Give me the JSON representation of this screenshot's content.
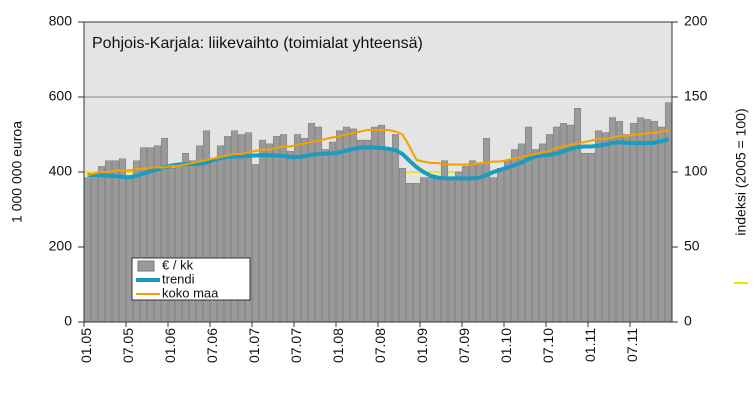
{
  "chart_data": {
    "type": "bar",
    "title": "Pohjois-Karjala: liikevaihto (toimialat yhteensä)",
    "ylabel": "1 000 000 euroa",
    "categories": [
      "01.05",
      null,
      null,
      null,
      null,
      null,
      "07.05",
      null,
      null,
      null,
      null,
      null,
      "01.06",
      null,
      null,
      null,
      null,
      null,
      "07.06",
      null,
      null,
      null,
      null,
      null,
      "01.07",
      null,
      null,
      null,
      null,
      null,
      "07.07",
      null,
      null,
      null,
      null,
      null,
      "01.08",
      null,
      null,
      null,
      null,
      null,
      "07.08",
      null,
      null,
      null,
      null,
      null,
      "01.09",
      null,
      null,
      null,
      null,
      null,
      "07.09",
      null,
      null,
      null,
      null,
      null,
      "01.10",
      null,
      null,
      null,
      null,
      null,
      "07.10",
      null,
      null,
      null,
      null,
      null,
      "01.11",
      null,
      null,
      null,
      null,
      null,
      "07.11",
      null,
      null,
      null,
      null,
      null
    ],
    "series": [
      {
        "name": "€ / kk",
        "type": "bar",
        "color": "#9a9a9a",
        "values": [
          385,
          395,
          415,
          430,
          430,
          435,
          390,
          430,
          465,
          465,
          470,
          490,
          410,
          420,
          450,
          430,
          470,
          510,
          430,
          470,
          495,
          510,
          500,
          505,
          420,
          485,
          475,
          495,
          500,
          455,
          500,
          490,
          530,
          520,
          460,
          480,
          510,
          520,
          515,
          485,
          485,
          520,
          525,
          460,
          500,
          410,
          370,
          370,
          385,
          385,
          380,
          430,
          385,
          400,
          415,
          430,
          420,
          490,
          385,
          410,
          430,
          460,
          475,
          520,
          460,
          475,
          500,
          520,
          530,
          525,
          570,
          450,
          450,
          510,
          505,
          545,
          535,
          500,
          530,
          545,
          540,
          535,
          520,
          585
        ]
      },
      {
        "name": "trendi",
        "type": "line",
        "color": "#1a9bbf",
        "values": [
          392,
          392,
          391,
          390,
          389,
          387,
          386,
          390,
          396,
          402,
          407,
          412,
          417,
          420,
          421,
          421,
          422,
          425,
          432,
          437,
          440,
          441,
          442,
          443,
          444,
          445,
          445,
          444,
          443,
          440,
          440,
          442,
          446,
          448,
          449,
          450,
          452,
          457,
          462,
          465,
          466,
          465,
          464,
          462,
          458,
          448,
          430,
          413,
          400,
          390,
          385,
          383,
          383,
          383,
          383,
          383,
          385,
          392,
          400,
          406,
          412,
          418,
          425,
          435,
          442,
          444,
          446,
          449,
          455,
          462,
          466,
          468,
          468,
          470,
          474,
          478,
          479,
          478,
          477,
          477,
          477,
          478,
          482,
          488
        ]
      },
      {
        "name": "koko maa",
        "type": "line",
        "axis": "y2",
        "color": "#f5a000",
        "values": [
          98,
          99,
          100,
          100,
          101,
          101,
          101,
          102,
          102,
          103,
          103,
          103,
          104,
          104,
          105,
          106,
          107,
          108,
          109,
          110,
          111,
          112,
          112,
          113,
          114,
          115,
          115,
          116,
          117,
          117,
          118,
          119,
          120,
          121,
          122,
          123,
          124,
          125,
          126,
          127,
          128,
          128,
          128,
          128,
          127,
          125,
          117,
          108,
          107,
          106,
          106,
          105,
          105,
          105,
          105,
          105,
          106,
          106,
          107,
          107,
          108,
          109,
          110,
          111,
          112,
          113,
          114,
          116,
          117,
          118,
          119,
          120,
          121,
          122,
          122,
          123,
          124,
          124,
          125,
          125,
          126,
          126,
          127,
          128
        ]
      }
    ],
    "reference_line": {
      "value": 100,
      "axis": "y2",
      "label": "indeksi (2005 = 100)",
      "color": "#e6e600"
    },
    "ylim": [
      0,
      800
    ],
    "yticks": [
      0,
      200,
      400,
      600,
      800
    ],
    "y2lim": [
      0,
      200
    ],
    "y2ticks": [
      0,
      50,
      100,
      150,
      200
    ],
    "grid": true,
    "legend": "lower left"
  }
}
